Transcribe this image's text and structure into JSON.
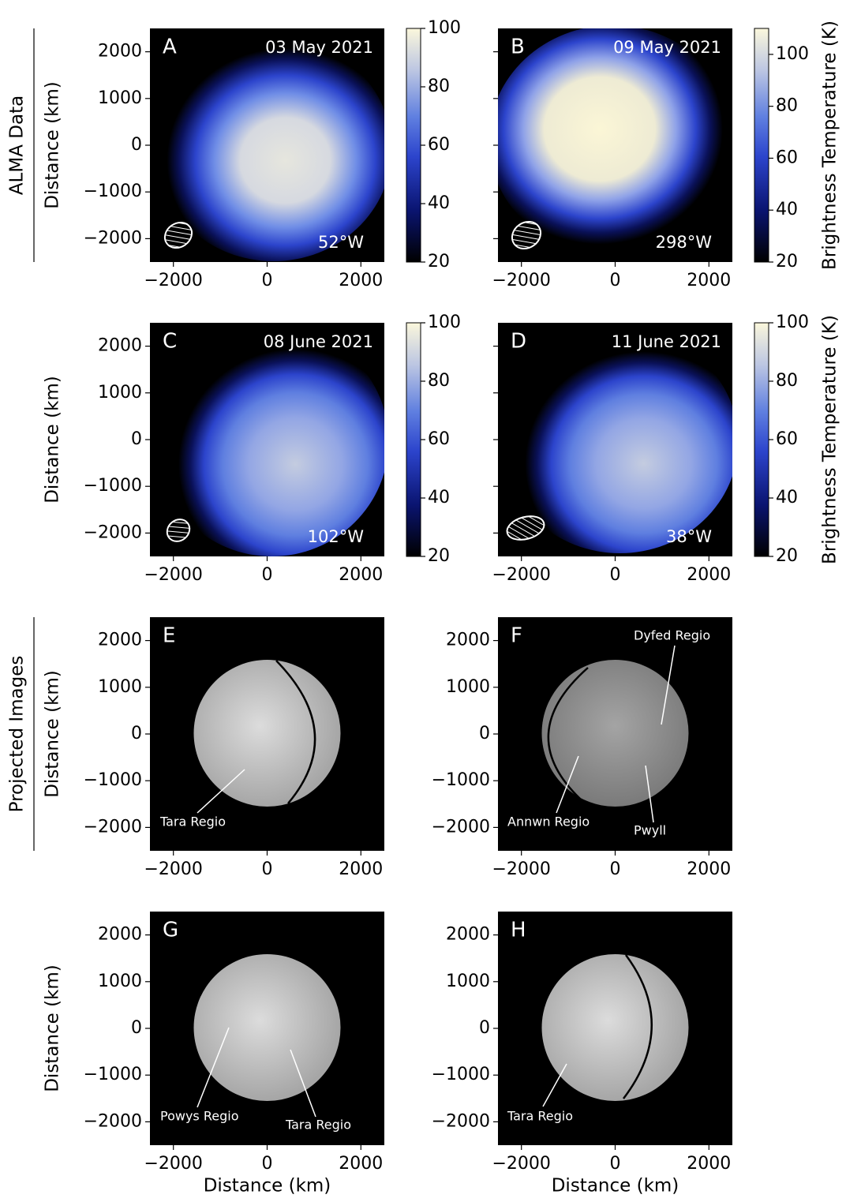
{
  "chart_data": [
    {
      "type": "image",
      "panel": "A",
      "date": "03 May 2021",
      "longitude": "52°W",
      "row_label": "ALMA Data",
      "ylabel": "Distance (km)",
      "xlim": [
        -2500,
        2500
      ],
      "ylim": [
        -2500,
        2500
      ],
      "xticks": [
        {
          "value": -2000,
          "label": "−2000"
        },
        0,
        2000
      ],
      "yticks": [
        {
          "value": -2000,
          "label": "−2000"
        },
        {
          "value": -1000,
          "label": "−1000"
        },
        0,
        1000,
        2000
      ],
      "ytick_labels": true,
      "colorbar": {
        "clim": [
          20,
          100
        ],
        "ticks": [
          20,
          40,
          60,
          80,
          100
        ]
      }
    },
    {
      "type": "image",
      "panel": "B",
      "date": "09 May 2021",
      "longitude": "298°W",
      "xlim": [
        -2500,
        2500
      ],
      "ylim": [
        -2500,
        2500
      ],
      "xticks": [
        {
          "value": -2000,
          "label": "−2000"
        },
        0,
        2000
      ],
      "yticks": [
        {
          "value": -2000,
          "label": "−2000"
        },
        {
          "value": -1000,
          "label": "−1000"
        },
        0,
        1000,
        2000
      ],
      "ytick_labels": false,
      "colorbar": {
        "clim": [
          20,
          110
        ],
        "ticks": [
          20,
          40,
          60,
          80,
          100
        ],
        "label": "Brightness Temperature (K)"
      }
    },
    {
      "type": "image",
      "panel": "C",
      "date": "08 June 2021",
      "longitude": "102°W",
      "ylabel": "Distance (km)",
      "xlim": [
        -2500,
        2500
      ],
      "ylim": [
        -2500,
        2500
      ],
      "xticks": [
        {
          "value": -2000,
          "label": "−2000"
        },
        0,
        2000
      ],
      "yticks": [
        {
          "value": -2000,
          "label": "−2000"
        },
        {
          "value": -1000,
          "label": "−1000"
        },
        0,
        1000,
        2000
      ],
      "ytick_labels": true,
      "colorbar": {
        "clim": [
          20,
          100
        ],
        "ticks": [
          20,
          40,
          60,
          80,
          100
        ]
      }
    },
    {
      "type": "image",
      "panel": "D",
      "date": "11 June 2021",
      "longitude": "38°W",
      "xlim": [
        -2500,
        2500
      ],
      "ylim": [
        -2500,
        2500
      ],
      "xticks": [
        {
          "value": -2000,
          "label": "−2000"
        },
        0,
        2000
      ],
      "yticks": [
        {
          "value": -2000,
          "label": "−2000"
        },
        {
          "value": -1000,
          "label": "−1000"
        },
        0,
        1000,
        2000
      ],
      "ytick_labels": false,
      "colorbar": {
        "clim": [
          20,
          100
        ],
        "ticks": [
          20,
          40,
          60,
          80,
          100
        ],
        "label": "Brightness Temperature (K)"
      }
    },
    {
      "type": "image",
      "panel": "E",
      "row_label": "Projected Images",
      "ylabel": "Distance (km)",
      "xlim": [
        -2500,
        2500
      ],
      "ylim": [
        -2500,
        2500
      ],
      "xticks": [
        {
          "value": -2000,
          "label": "−2000"
        },
        0,
        2000
      ],
      "yticks": [
        {
          "value": -2000,
          "label": "−2000"
        },
        {
          "value": -1000,
          "label": "−1000"
        },
        0,
        1000,
        2000
      ],
      "ytick_labels": true,
      "annotations": [
        "Tara Regio"
      ]
    },
    {
      "type": "image",
      "panel": "F",
      "xlim": [
        -2500,
        2500
      ],
      "ylim": [
        -2500,
        2500
      ],
      "xticks": [
        {
          "value": -2000,
          "label": "−2000"
        },
        0,
        2000
      ],
      "yticks": [
        {
          "value": -2000,
          "label": "−2000"
        },
        {
          "value": -1000,
          "label": "−1000"
        },
        0,
        1000,
        2000
      ],
      "ytick_labels": true,
      "annotations": [
        "Dyfed Regio",
        "Annwn Regio",
        "Pwyll"
      ]
    },
    {
      "type": "image",
      "panel": "G",
      "ylabel": "Distance (km)",
      "xlabel": "Distance (km)",
      "xlim": [
        -2500,
        2500
      ],
      "ylim": [
        -2500,
        2500
      ],
      "xticks": [
        {
          "value": -2000,
          "label": "−2000"
        },
        0,
        2000
      ],
      "yticks": [
        {
          "value": -2000,
          "label": "−2000"
        },
        {
          "value": -1000,
          "label": "−1000"
        },
        0,
        1000,
        2000
      ],
      "ytick_labels": true,
      "annotations": [
        "Powys Regio",
        "Tara Regio"
      ]
    },
    {
      "type": "image",
      "panel": "H",
      "xlabel": "Distance (km)",
      "xlim": [
        -2500,
        2500
      ],
      "ylim": [
        -2500,
        2500
      ],
      "xticks": [
        {
          "value": -2000,
          "label": "−2000"
        },
        0,
        2000
      ],
      "yticks": [
        {
          "value": -2000,
          "label": "−2000"
        },
        {
          "value": -1000,
          "label": "−1000"
        },
        0,
        1000,
        2000
      ],
      "ytick_labels": true,
      "annotations": [
        "Tara Regio"
      ]
    }
  ]
}
